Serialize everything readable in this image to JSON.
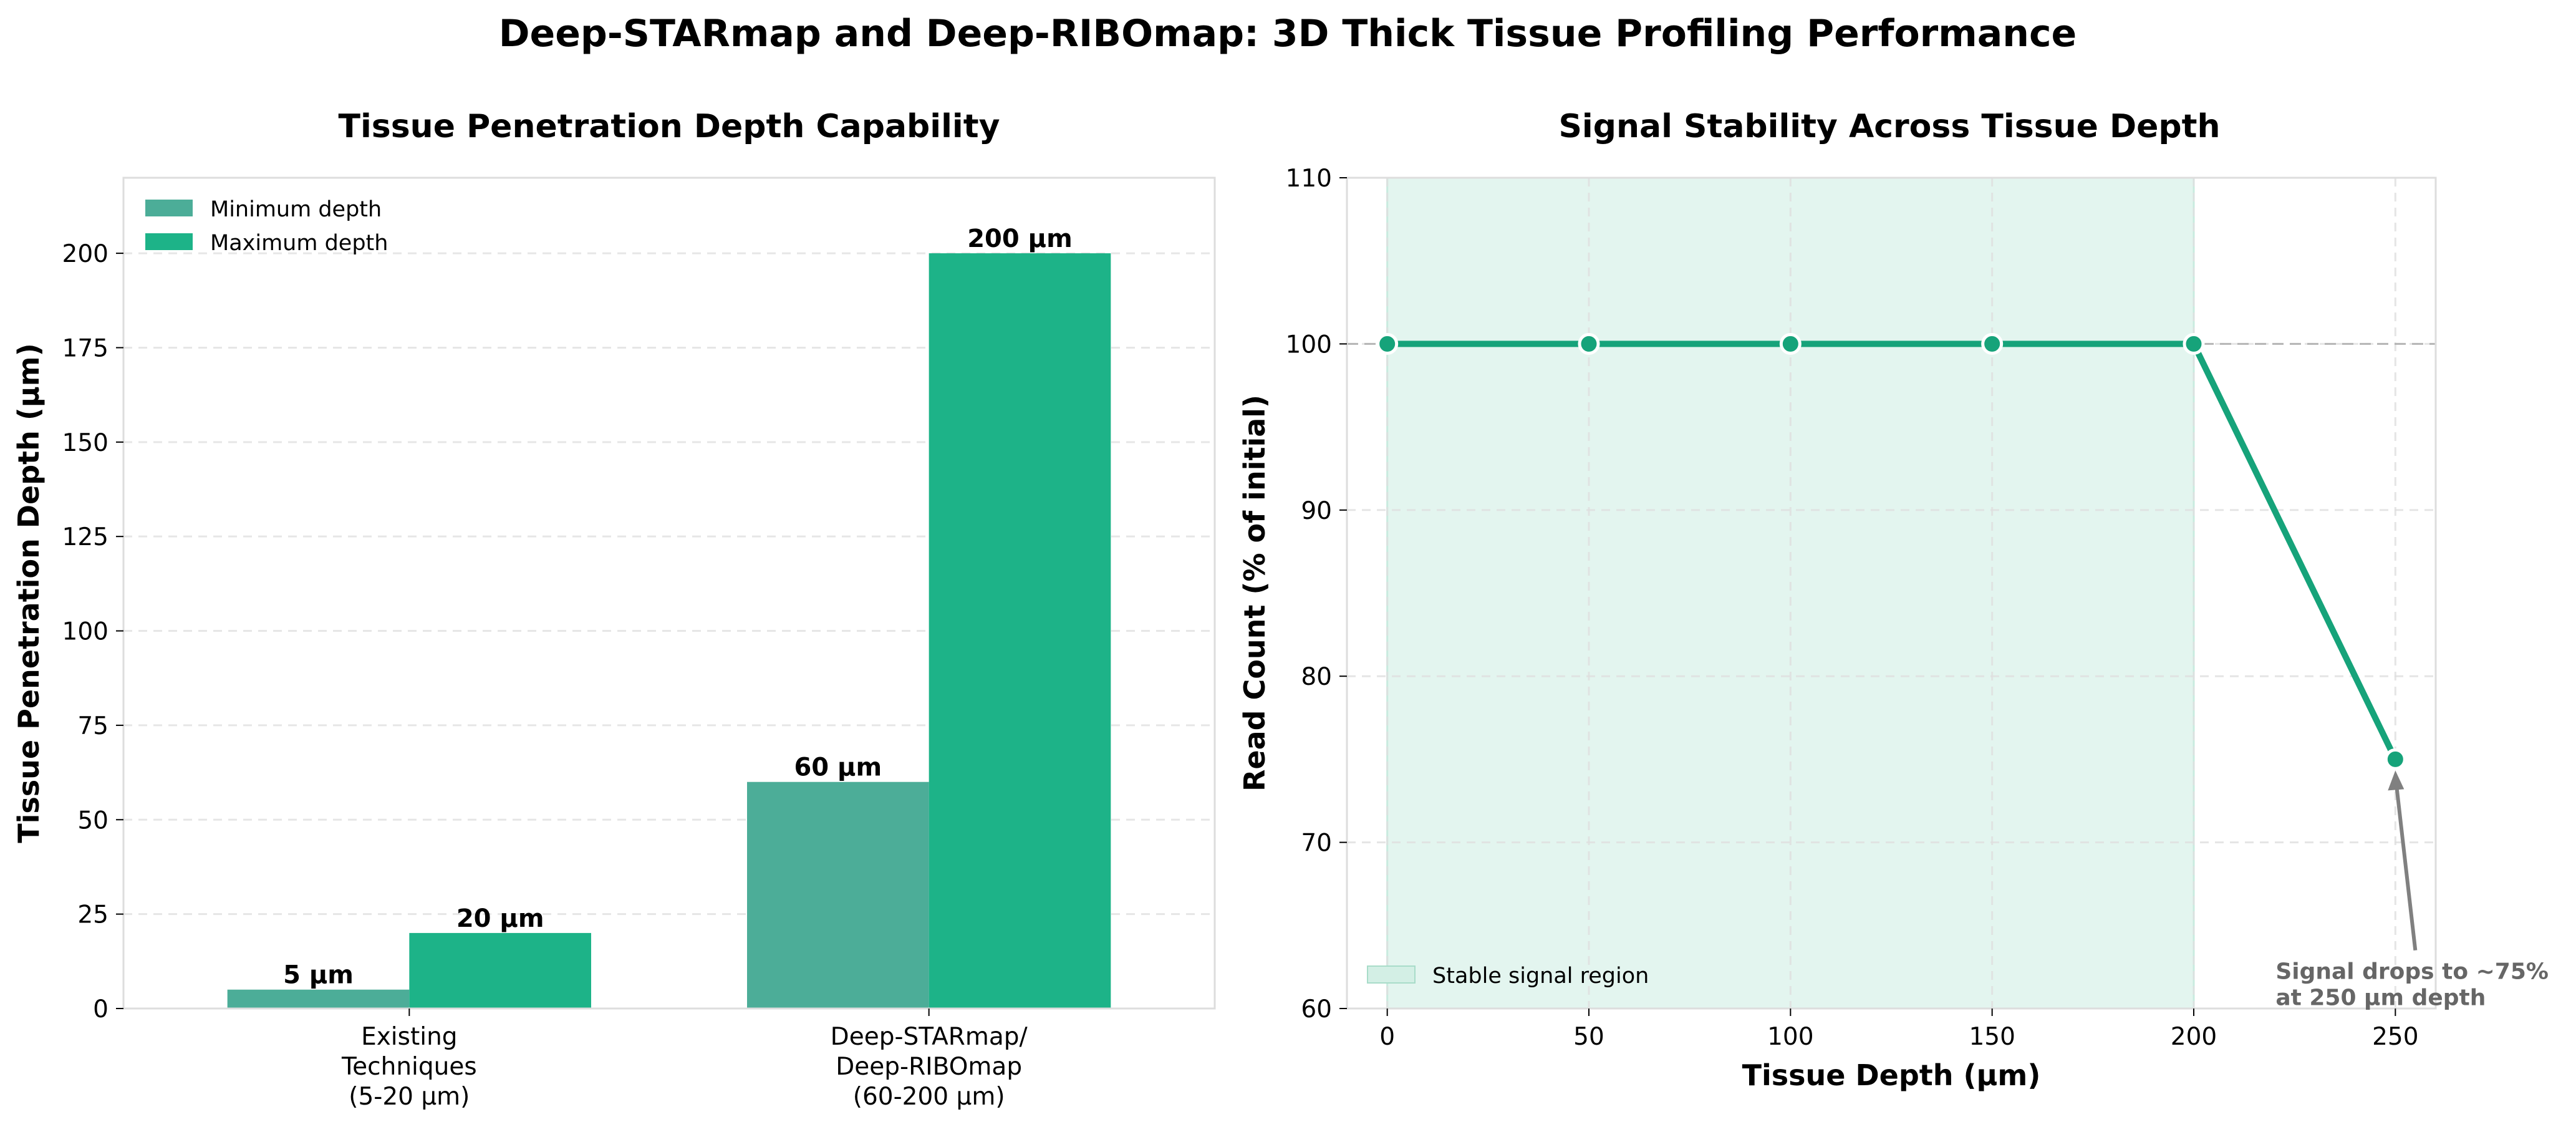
{
  "suptitle": "Deep-STARmap and Deep-RIBOmap: 3D Thick Tissue Profiling Performance",
  "colors": {
    "min_bar": "#4cad98",
    "max_bar": "#1db388",
    "line": "#16a37a",
    "shade": "#e3f5ef",
    "grid": "#e6e6e6",
    "spine": "#dddddd",
    "annotation": "#808080"
  },
  "chart_data": [
    {
      "type": "bar",
      "title": "Tissue Penetration Depth Capability",
      "xlabel": "",
      "ylabel": "Tissue Penetration Depth (µm)",
      "categories": [
        [
          "Existing",
          "Techniques",
          "(5-20 µm)"
        ],
        [
          "Deep-STARmap/",
          "Deep-RIBOmap",
          "(60-200 µm)"
        ]
      ],
      "series": [
        {
          "name": "Minimum depth",
          "values": [
            5,
            60
          ],
          "labels": [
            "5 µm",
            "60 µm"
          ]
        },
        {
          "name": "Maximum depth",
          "values": [
            20,
            200
          ],
          "labels": [
            "20 µm",
            "200 µm"
          ]
        }
      ],
      "ylim": [
        0,
        220
      ],
      "yticks": [
        0,
        25,
        50,
        75,
        100,
        125,
        150,
        175,
        200
      ],
      "grid": true,
      "legend": "top-left"
    },
    {
      "type": "line",
      "title": "Signal Stability Across Tissue Depth",
      "xlabel": "Tissue Depth (µm)",
      "ylabel": "Read Count (% of initial)",
      "x": [
        0,
        50,
        100,
        150,
        200,
        250
      ],
      "y": [
        100,
        100,
        100,
        100,
        100,
        75
      ],
      "xlim": [
        -10,
        260
      ],
      "ylim": [
        60,
        110
      ],
      "xticks": [
        0,
        50,
        100,
        150,
        200,
        250
      ],
      "yticks": [
        60,
        70,
        80,
        90,
        100,
        110
      ],
      "reference_line": 100,
      "shaded_region": {
        "x_from": 0,
        "x_to": 200,
        "label": "Stable signal region"
      },
      "annotation": {
        "lines": [
          "Signal drops to ~75%",
          "at 250 µm depth"
        ],
        "points_to": [
          250,
          75
        ],
        "text_at": [
          250,
          62
        ]
      },
      "grid": true,
      "legend": "bottom-left"
    }
  ]
}
